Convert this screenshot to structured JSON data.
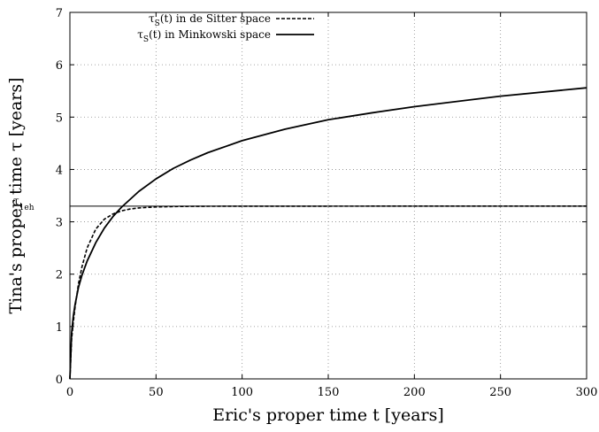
{
  "chart_data": {
    "type": "line",
    "xlabel": "Eric's proper time t [years]",
    "ylabel": "Tina's proper time τ [years]",
    "xlim": [
      0,
      300
    ],
    "ylim": [
      0,
      7
    ],
    "x_ticks": [
      0,
      50,
      100,
      150,
      200,
      250,
      300
    ],
    "y_ticks": [
      0,
      1,
      2,
      3,
      4,
      5,
      6,
      7
    ],
    "grid": true,
    "legend_position": "top-left",
    "series": [
      {
        "name": "τS(t) in de Sitter space",
        "legend_main": "τ",
        "legend_sub": "S",
        "legend_rest": "(t) in de Sitter space",
        "style": "dashed",
        "color": "#000000",
        "x": [
          0,
          1,
          2,
          3,
          5,
          7,
          10,
          15,
          20,
          25,
          30,
          35,
          40,
          50,
          60,
          70,
          80,
          100,
          150,
          200,
          250,
          300
        ],
        "y": [
          0,
          0.76,
          1.09,
          1.37,
          1.82,
          2.14,
          2.5,
          2.86,
          3.05,
          3.15,
          3.21,
          3.245,
          3.265,
          3.285,
          3.292,
          3.295,
          3.297,
          3.298,
          3.299,
          3.3,
          3.3,
          3.3
        ]
      },
      {
        "name": "τS(t) in Minkowski space",
        "legend_main": "τ",
        "legend_sub": "S",
        "legend_rest": "(t) in Minkowski space",
        "style": "solid",
        "color": "#000000",
        "x": [
          0,
          1,
          2,
          3,
          5,
          7,
          10,
          15,
          20,
          25,
          30,
          40,
          50,
          60,
          70,
          80,
          100,
          125,
          150,
          175,
          200,
          250,
          300
        ],
        "y": [
          0,
          0.88,
          1.2,
          1.42,
          1.75,
          1.98,
          2.25,
          2.6,
          2.88,
          3.1,
          3.28,
          3.58,
          3.82,
          4.02,
          4.18,
          4.32,
          4.55,
          4.77,
          4.95,
          5.08,
          5.2,
          5.4,
          5.56
        ]
      }
    ],
    "hline": {
      "y": 3.3,
      "label_main": "τ",
      "label_sub": "1eh"
    }
  }
}
